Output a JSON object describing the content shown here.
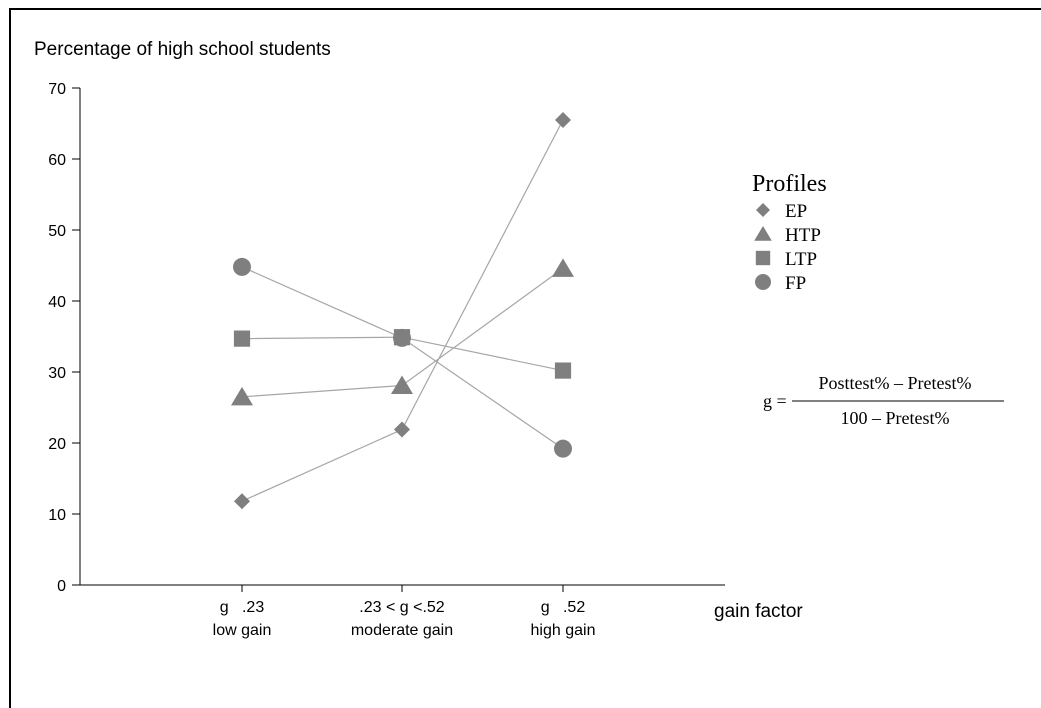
{
  "chart_data": {
    "type": "line",
    "title": "Percentage of high school students",
    "xlabel": "gain factor",
    "ylabel": "",
    "ylim": [
      0,
      70
    ],
    "yticks": [
      0,
      10,
      20,
      30,
      40,
      50,
      60,
      70
    ],
    "categories": [
      {
        "line1": "g   .23",
        "line2": "low gain"
      },
      {
        "line1": ".23 < g <.52",
        "line2": "moderate gain"
      },
      {
        "line1": "g   .52",
        "line2": "high gain"
      }
    ],
    "legend_title": "Profiles",
    "legend_position": "right",
    "series": [
      {
        "name": "EP",
        "marker": "diamond",
        "values": [
          11.8,
          21.9,
          65.5
        ]
      },
      {
        "name": "HTP",
        "marker": "triangle",
        "values": [
          26.5,
          28.1,
          44.6
        ]
      },
      {
        "name": "LTP",
        "marker": "square",
        "values": [
          34.7,
          34.9,
          30.2
        ]
      },
      {
        "name": "FP",
        "marker": "circle",
        "values": [
          44.8,
          34.8,
          19.2
        ]
      }
    ],
    "colors": {
      "marker": "#7f7f7f",
      "line": "#a6a6a6",
      "axis": "#000000"
    },
    "formula": {
      "lhs": "g =",
      "numerator": "Posttest% – Pretest%",
      "denominator": "100 – Pretest%"
    }
  }
}
